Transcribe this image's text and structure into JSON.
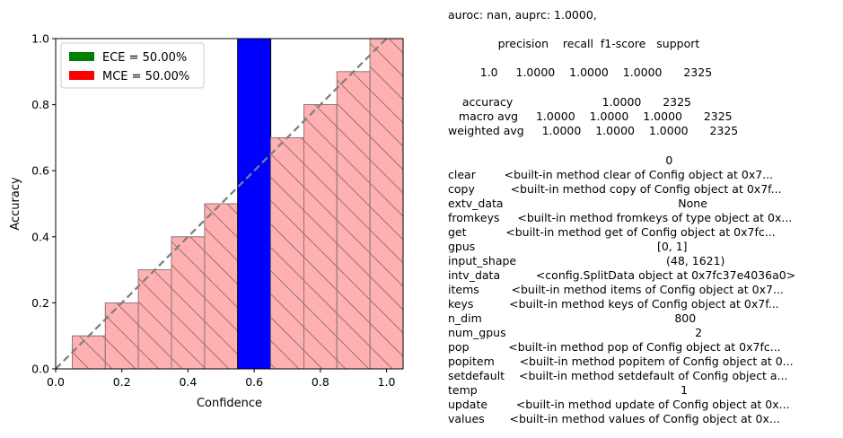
{
  "chart_data": {
    "type": "bar",
    "xlabel": "Confidence",
    "ylabel": "Accuracy",
    "xlim": [
      0.0,
      1.05
    ],
    "ylim": [
      0.0,
      1.0
    ],
    "xticks": [
      "0.0",
      "0.2",
      "0.4",
      "0.6",
      "0.8",
      "1.0"
    ],
    "yticks": [
      "0.0",
      "0.2",
      "0.4",
      "0.6",
      "0.8",
      "1.0"
    ],
    "bin_edges": [
      0.05,
      0.15,
      0.25,
      0.35,
      0.45,
      0.55,
      0.65,
      0.75,
      0.85,
      0.95,
      1.05
    ],
    "values": [
      0.1,
      0.2,
      0.3,
      0.4,
      0.5,
      1.0,
      0.7,
      0.8,
      0.9,
      1.0
    ],
    "highlight_bin": 5,
    "legend": {
      "placement": "top-left",
      "entries": [
        {
          "label": "ECE = 50.00%",
          "color": "#008000"
        },
        {
          "label": "MCE = 50.00%",
          "color": "#ff0000"
        }
      ]
    },
    "colors": {
      "gap_fill": "#ffb0b0",
      "highlight_fill": "#0000ff",
      "diagonal": "#808080"
    },
    "diagonal": [
      [
        0.0,
        0.0
      ],
      [
        1.0,
        1.0
      ]
    ],
    "grid": false
  },
  "report": {
    "lines": [
      "auroc: nan, auprc: 1.0000,",
      "",
      "              precision    recall  f1-score   support",
      "",
      "         1.0     1.0000    1.0000    1.0000      2325",
      "",
      "    accuracy                         1.0000      2325",
      "   macro avg     1.0000    1.0000    1.0000      2325",
      "weighted avg     1.0000    1.0000    1.0000      2325",
      "",
      "                                                             0",
      "clear        <built-in method clear of Config object at 0x7...",
      "copy          <built-in method copy of Config object at 0x7f...",
      "extv_data                                                 None",
      "fromkeys     <built-in method fromkeys of type object at 0x...",
      "get           <built-in method get of Config object at 0x7fc...",
      "gpus                                                   [0, 1]",
      "input_shape                                          (48, 1621)",
      "intv_data          <config.SplitData object at 0x7fc37e4036a0>",
      "items         <built-in method items of Config object at 0x7...",
      "keys          <built-in method keys of Config object at 0x7f...",
      "n_dim                                                      800",
      "num_gpus                                                     2",
      "pop           <built-in method pop of Config object at 0x7fc...",
      "popitem       <built-in method popitem of Config object at 0...",
      "setdefault    <built-in method setdefault of Config object a...",
      "temp                                                         1",
      "update        <built-in method update of Config object at 0x...",
      "values       <built-in method values of Config object at 0x..."
    ]
  }
}
